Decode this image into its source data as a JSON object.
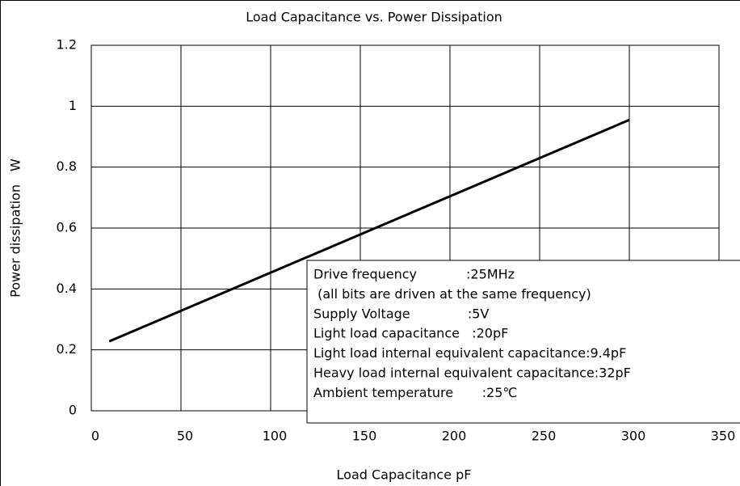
{
  "chart_data": {
    "type": "line",
    "title": "Load Capacitance vs. Power Dissipation",
    "x_label": "Load Capacitance pF",
    "y_label": "Power dissipation　W",
    "x": [
      10,
      300
    ],
    "values": [
      0.228,
      0.955
    ],
    "color": "#000000",
    "xlim": [
      0,
      350
    ],
    "xticks": [
      0,
      50,
      100,
      150,
      200,
      250,
      300,
      350
    ],
    "ylim": [
      0,
      1.2
    ],
    "yticks": [
      0,
      0.2,
      0.4,
      0.6,
      0.8,
      1,
      1.2
    ],
    "grid": true,
    "annotations": [
      "Drive frequency            :25MHz",
      " (all bits are driven at the same frequency)",
      "Supply Voltage              :5V",
      "Light load capacitance   :20pF",
      "Light load internal equivalent capacitance:9.4pF",
      "Heavy load internal equivalent capacitance:32pF",
      "Ambient temperature       :25℃"
    ]
  }
}
